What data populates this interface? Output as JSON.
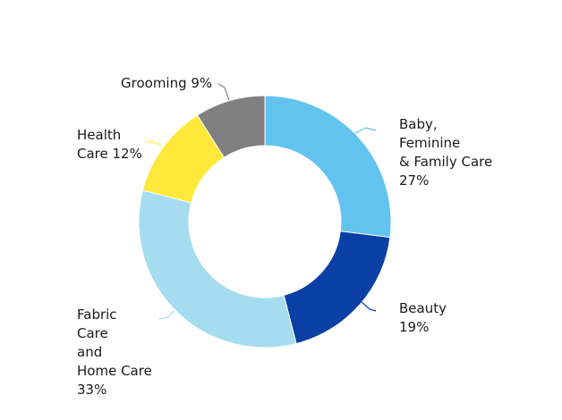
{
  "chart_data": {
    "type": "pie",
    "variant": "donut",
    "legend": "none",
    "slices": [
      {
        "label_lines": [
          "Baby,",
          "Feminine",
          "& Family Care",
          "27%"
        ],
        "name": "Baby, Feminine & Family Care",
        "value": 27,
        "color": "#62c3ef"
      },
      {
        "label_lines": [
          "Beauty",
          "19%"
        ],
        "name": "Beauty",
        "value": 19,
        "color": "#0a3fa6"
      },
      {
        "label_lines": [
          "Fabric",
          "Care",
          "and",
          "Home Care",
          "33%"
        ],
        "name": "Fabric Care and Home Care",
        "value": 33,
        "color": "#a6dcef"
      },
      {
        "label_lines": [
          "Health",
          "Care 12%"
        ],
        "name": "Health Care",
        "value": 12,
        "color": "#ffe83a"
      },
      {
        "label_lines": [
          "Grooming 9%"
        ],
        "name": "Grooming",
        "value": 9,
        "color": "#808080"
      }
    ]
  }
}
